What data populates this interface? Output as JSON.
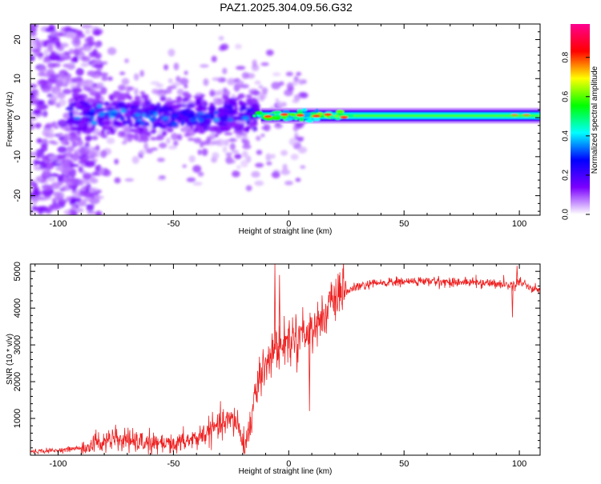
{
  "title": "PAZ1.2025.304.09.56.G32",
  "chart_data": [
    {
      "type": "heatmap",
      "id": "spectrogram",
      "xlabel": "Height of straight line (km)",
      "ylabel": "Frequency (Hz)",
      "xlim": [
        -112,
        109
      ],
      "ylim": [
        -25,
        24
      ],
      "xticks": [
        -100,
        -50,
        0,
        50,
        100
      ],
      "yticks": [
        -20,
        -10,
        0,
        10,
        20
      ],
      "colorbar": {
        "label": "Normalized spectral amplitude",
        "range": [
          0,
          0.97
        ],
        "ticks": [
          0.0,
          0.2,
          0.4,
          0.6,
          0.8
        ],
        "tick_labels": [
          "0.0",
          "0.2",
          "0.4",
          "0.6",
          "0.8"
        ],
        "colormap": [
          "#ffffff",
          "#7b00ff",
          "#0000ff",
          "#00ffff",
          "#00ff00",
          "#ffff00",
          "#ff0000",
          "#ff0090"
        ]
      },
      "features": {
        "noisy_region_x": [
          -112,
          -15
        ],
        "transition_x": [
          -15,
          20
        ],
        "stable_carrier_x": [
          20,
          109
        ],
        "carrier_frequency_hz": 0.5
      }
    },
    {
      "type": "line",
      "id": "snr",
      "xlabel": "Height of straight line (km)",
      "ylabel": "SNR (10 * v/v)",
      "xlim": [
        -112,
        109
      ],
      "ylim": [
        0,
        5200
      ],
      "xticks": [
        -100,
        -50,
        0,
        50,
        100
      ],
      "yticks": [
        1000,
        2000,
        3000,
        4000,
        5000
      ],
      "line_color": "#ee2222",
      "series": [
        {
          "name": "SNR",
          "x": [
            -112,
            -100,
            -90,
            -85,
            -80,
            -75,
            -70,
            -65,
            -60,
            -55,
            -50,
            -45,
            -40,
            -35,
            -30,
            -25,
            -22,
            -20,
            -18,
            -15,
            -13,
            -10,
            -8,
            -5,
            -3,
            0,
            3,
            5,
            8,
            10,
            13,
            15,
            20,
            25,
            30,
            35,
            40,
            50,
            60,
            70,
            80,
            90,
            95,
            98,
            100,
            105,
            109
          ],
          "y": [
            100,
            130,
            200,
            320,
            380,
            420,
            380,
            350,
            320,
            300,
            280,
            380,
            450,
            650,
            800,
            950,
            900,
            250,
            500,
            1400,
            2000,
            2600,
            2750,
            2900,
            3000,
            3100,
            3250,
            3350,
            3300,
            3500,
            3600,
            3800,
            4200,
            4450,
            4580,
            4640,
            4680,
            4720,
            4730,
            4710,
            4700,
            4670,
            4640,
            4600,
            4750,
            4550,
            4500
          ]
        }
      ],
      "notable_points": {
        "spikes": [
          {
            "x": -6,
            "y": 5200
          },
          {
            "x": -4,
            "y": 4900
          },
          {
            "x": 99,
            "y": 5150
          }
        ],
        "dips": [
          {
            "x": 9,
            "y": 1200
          },
          {
            "x": 97,
            "y": 3750
          }
        ]
      }
    }
  ]
}
